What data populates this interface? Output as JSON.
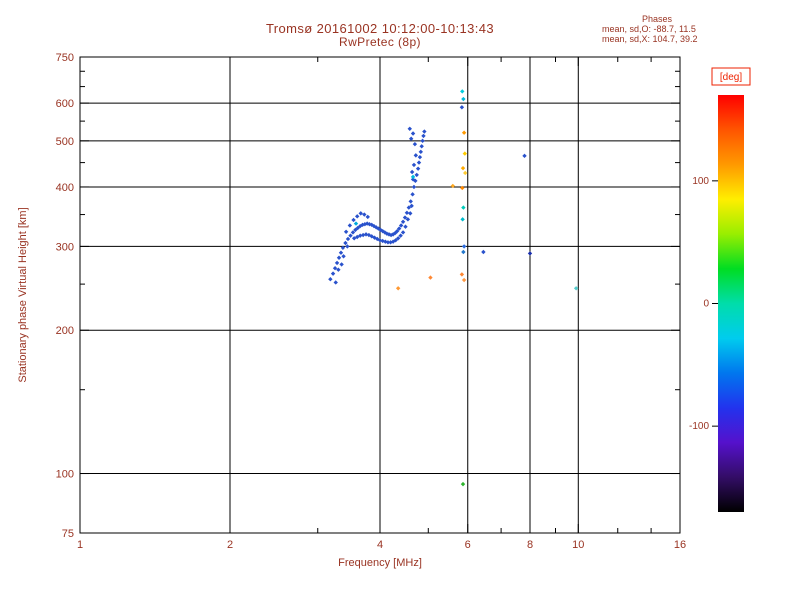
{
  "header": {
    "title_line1": "Tromsø 20161002 10:12:00-10:13:43",
    "title_line2": "RwPretec (8p)",
    "phases": {
      "heading": "Phases",
      "line_o": "mean, sd,O: -88.7, 11.5",
      "line_x": "mean, sd,X: 104.7, 39.2"
    }
  },
  "style": {
    "text_color": "#993322",
    "deg_color": "#ee2200",
    "grid_color": "#000000",
    "background": "#ffffff",
    "trace_color": "#2a52cc"
  },
  "chart_data": {
    "type": "scatter",
    "title": "Tromsø 20161002 10:12:00-10:13:43 — RwPretec (8p)",
    "xlabel": "Frequency [MHz]",
    "ylabel": "Stationary phase Virtual Height [km]",
    "xscale": "log",
    "yscale": "log",
    "xlim": [
      1,
      16
    ],
    "ylim": [
      75,
      750
    ],
    "x_ticks": [
      1,
      2,
      4,
      6,
      8,
      10,
      16
    ],
    "x_minor_ticks": [
      3,
      5,
      7,
      9,
      12,
      14
    ],
    "x_gridlines": [
      2,
      4,
      6,
      8,
      10
    ],
    "y_ticks": [
      750,
      600,
      500,
      400,
      300,
      200,
      100,
      75
    ],
    "y_minor_ticks": [
      150,
      250,
      350,
      450,
      550,
      650,
      700
    ],
    "y_gridlines": [
      600,
      500,
      400,
      300,
      200,
      100
    ],
    "grid": true,
    "legend": "none",
    "colorbar": {
      "label": "[deg]",
      "vmin": -170,
      "vmax": 170,
      "ticks": [
        {
          "value": 100,
          "label": "100"
        },
        {
          "value": 0,
          "label": "0"
        },
        {
          "value": -100,
          "label": "-100"
        }
      ],
      "colors_top_to_bottom": [
        "#ff0000",
        "#ff5500",
        "#ff9900",
        "#ffee00",
        "#99ee00",
        "#00dd22",
        "#00ddaa",
        "#00ccee",
        "#0077ee",
        "#2233ee",
        "#5511cc",
        "#330d66",
        "#000000"
      ]
    },
    "series": [
      {
        "name": "main-echo-trace",
        "marker": "diamond",
        "color": "#2a52cc",
        "points": [
          [
            3.18,
            256
          ],
          [
            3.22,
            263
          ],
          [
            3.25,
            270
          ],
          [
            3.28,
            277
          ],
          [
            3.31,
            284
          ],
          [
            3.34,
            291
          ],
          [
            3.37,
            298
          ],
          [
            3.41,
            305
          ],
          [
            3.45,
            311
          ],
          [
            3.49,
            316
          ],
          [
            3.53,
            321
          ],
          [
            3.57,
            325
          ],
          [
            3.61,
            328
          ],
          [
            3.65,
            331
          ],
          [
            3.69,
            333
          ],
          [
            3.73,
            334
          ],
          [
            3.77,
            335
          ],
          [
            3.81,
            334
          ],
          [
            3.85,
            333
          ],
          [
            3.89,
            331
          ],
          [
            3.93,
            329
          ],
          [
            3.97,
            327
          ],
          [
            4.01,
            325
          ],
          [
            4.05,
            323
          ],
          [
            4.09,
            321
          ],
          [
            4.13,
            319
          ],
          [
            4.17,
            318
          ],
          [
            4.21,
            317
          ],
          [
            4.25,
            318
          ],
          [
            4.29,
            320
          ],
          [
            4.33,
            323
          ],
          [
            4.37,
            327
          ],
          [
            4.41,
            332
          ],
          [
            4.45,
            338
          ],
          [
            4.49,
            345
          ],
          [
            4.53,
            353
          ],
          [
            4.57,
            362
          ],
          [
            4.61,
            373
          ],
          [
            4.65,
            386
          ],
          [
            4.68,
            400
          ],
          [
            4.71,
            412
          ],
          [
            4.74,
            424
          ],
          [
            4.77,
            437
          ],
          [
            4.79,
            450
          ],
          [
            4.81,
            462
          ],
          [
            4.83,
            474
          ],
          [
            4.85,
            487
          ],
          [
            4.87,
            500
          ],
          [
            4.89,
            512
          ],
          [
            4.91,
            523
          ],
          [
            3.55,
            312
          ],
          [
            3.6,
            314
          ],
          [
            3.65,
            316
          ],
          [
            3.7,
            317
          ],
          [
            3.75,
            318
          ],
          [
            3.8,
            317
          ],
          [
            3.85,
            315
          ],
          [
            3.9,
            313
          ],
          [
            3.95,
            311
          ],
          [
            4.0,
            309
          ],
          [
            4.05,
            308
          ],
          [
            4.1,
            307
          ],
          [
            4.15,
            306
          ],
          [
            4.2,
            306
          ],
          [
            4.25,
            307
          ],
          [
            4.3,
            309
          ],
          [
            4.35,
            312
          ],
          [
            4.4,
            316
          ],
          [
            4.45,
            321
          ],
          [
            3.26,
            252
          ],
          [
            3.3,
            268
          ],
          [
            3.38,
            286
          ],
          [
            3.44,
            300
          ],
          [
            3.42,
            322
          ],
          [
            3.48,
            332
          ],
          [
            3.54,
            341
          ],
          [
            3.6,
            347
          ],
          [
            3.66,
            352
          ],
          [
            3.72,
            350
          ],
          [
            3.78,
            346
          ],
          [
            3.35,
            275
          ],
          [
            4.5,
            330
          ],
          [
            4.55,
            342
          ],
          [
            4.6,
            352
          ],
          [
            4.63,
            365
          ],
          [
            4.59,
            530
          ],
          [
            4.62,
            505
          ],
          [
            4.66,
            518
          ],
          [
            4.7,
            492
          ],
          [
            4.72,
            466
          ],
          [
            4.68,
            445
          ],
          [
            4.64,
            430
          ],
          [
            4.66,
            415
          ]
        ]
      },
      {
        "name": "scattered-echoes",
        "marker": "diamond",
        "color": "#2a52cc",
        "points": [
          [
            4.66,
            420,
            "#00bbdd"
          ],
          [
            3.58,
            335,
            "#00aadd"
          ],
          [
            5.85,
            635,
            "#00ccdd"
          ],
          [
            5.88,
            612,
            "#00bbdd"
          ],
          [
            5.84,
            588,
            "#2a52cc"
          ],
          [
            5.9,
            520,
            "#ff9900"
          ],
          [
            5.92,
            470,
            "#ffcc00"
          ],
          [
            5.87,
            438,
            "#ffaa00"
          ],
          [
            5.93,
            428,
            "#ffcc33"
          ],
          [
            5.85,
            398,
            "#ff8800"
          ],
          [
            5.88,
            362,
            "#00ccbb"
          ],
          [
            5.86,
            342,
            "#00bbcc"
          ],
          [
            5.9,
            300,
            "#2a6add"
          ],
          [
            5.88,
            292,
            "#2277cc"
          ],
          [
            5.84,
            262,
            "#ff8833"
          ],
          [
            5.9,
            255,
            "#ff9944"
          ],
          [
            5.87,
            95,
            "#2db52d"
          ],
          [
            6.45,
            292,
            "#2a52cc"
          ],
          [
            7.8,
            465,
            "#2a52cc"
          ],
          [
            8.0,
            290,
            "#1a2fae"
          ],
          [
            9.9,
            245,
            "#55cccc"
          ],
          [
            5.6,
            402,
            "#ffaa22"
          ],
          [
            5.05,
            258,
            "#ff8833"
          ],
          [
            4.35,
            245,
            "#ff9933"
          ]
        ]
      }
    ]
  }
}
